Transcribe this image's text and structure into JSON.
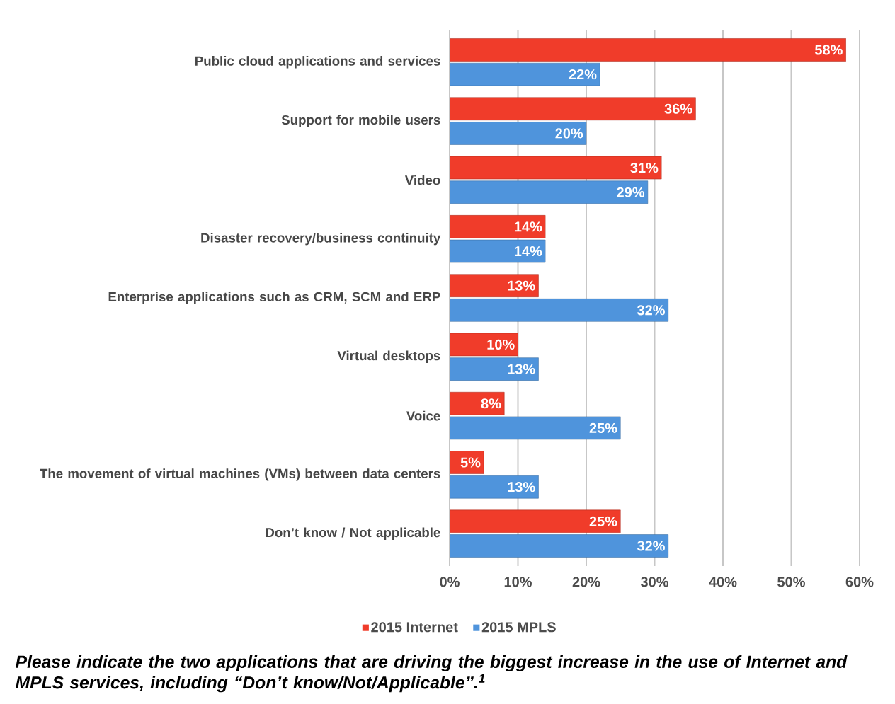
{
  "chart_data": {
    "type": "bar",
    "orientation": "horizontal",
    "categories": [
      "Public cloud applications and services",
      "Support for mobile users",
      "Video",
      "Disaster recovery/business continuity",
      "Enterprise applications such as CRM, SCM and ERP",
      "Virtual desktops",
      "Voice",
      "The movement of virtual machines (VMs) between data centers",
      "Don’t know / Not applicable"
    ],
    "series": [
      {
        "name": "2015 Internet",
        "color": "#f03c2a",
        "values": [
          58,
          36,
          31,
          14,
          13,
          10,
          8,
          5,
          25
        ],
        "value_labels": [
          "58%",
          "36%",
          "31%",
          "14%",
          "13%",
          "10%",
          "8%",
          "5%",
          "25%"
        ]
      },
      {
        "name": "2015 MPLS",
        "color": "#4f94dc",
        "values": [
          22,
          20,
          29,
          14,
          32,
          13,
          25,
          13,
          32
        ],
        "value_labels": [
          "22%",
          "20%",
          "29%",
          "14%",
          "32%",
          "13%",
          "25%",
          "13%",
          "32%"
        ]
      }
    ],
    "xlim": [
      0,
      60
    ],
    "xticks": [
      {
        "value": 0,
        "label": "0%"
      },
      {
        "value": 10,
        "label": "10%"
      },
      {
        "value": 20,
        "label": "20%"
      },
      {
        "value": 30,
        "label": "30%"
      },
      {
        "value": 40,
        "label": "40%"
      },
      {
        "value": 50,
        "label": "50%"
      },
      {
        "value": 60,
        "label": "60%"
      }
    ],
    "grid": "x",
    "legend": "bottom",
    "annotations": [
      "Please indicate the two applications that are driving the biggest increase in the use of Internet and MPLS services, including “Don’t know/Not/Applicable”.$^{1}$"
    ]
  }
}
